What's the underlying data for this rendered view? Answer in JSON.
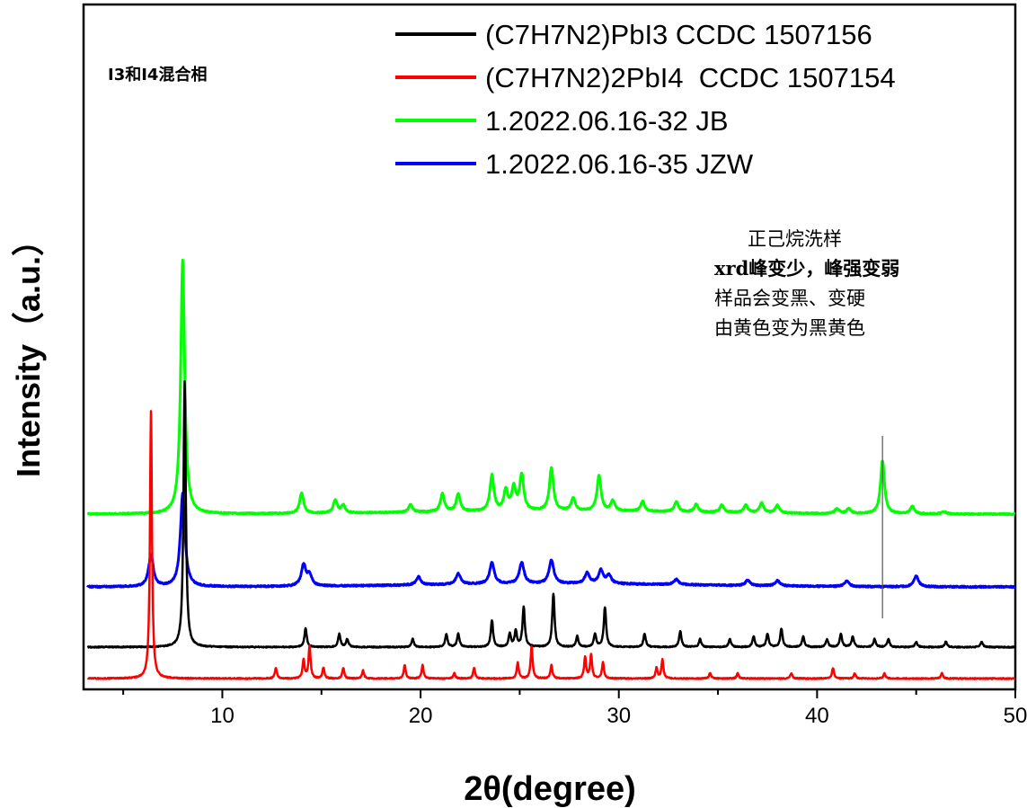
{
  "chart_data": {
    "type": "line",
    "xlabel": "2θ(degree)",
    "ylabel": "Intensity（a.u.）",
    "xlim": [
      3,
      50
    ],
    "x_ticks": [
      10,
      20,
      30,
      40,
      50
    ],
    "corner_label": "I3和I4混合相",
    "annotation_lines": [
      "正己烷洗样",
      "xrd峰变少，峰强变弱",
      "样品会变黑、变硬",
      "由黄色变为黑黄色"
    ],
    "marker_line_x": 43.3,
    "legend_position": "top-right",
    "series": [
      {
        "name": "(C7H7N2)PbI3 CCDC 1507156",
        "color": "#000000",
        "peaks": [
          [
            8.1,
            100
          ],
          [
            14.2,
            7
          ],
          [
            15.9,
            5
          ],
          [
            16.3,
            3
          ],
          [
            19.6,
            3
          ],
          [
            21.3,
            5
          ],
          [
            21.9,
            5
          ],
          [
            23.6,
            10
          ],
          [
            24.5,
            5
          ],
          [
            24.8,
            6
          ],
          [
            25.2,
            15
          ],
          [
            26.7,
            20
          ],
          [
            27.9,
            4
          ],
          [
            28.8,
            5
          ],
          [
            29.3,
            15
          ],
          [
            31.3,
            5
          ],
          [
            33.1,
            6
          ],
          [
            34.1,
            3
          ],
          [
            35.6,
            3
          ],
          [
            36.8,
            4
          ],
          [
            37.5,
            5
          ],
          [
            38.2,
            7
          ],
          [
            39.3,
            4
          ],
          [
            40.5,
            3
          ],
          [
            41.2,
            5
          ],
          [
            41.8,
            4
          ],
          [
            42.9,
            3
          ],
          [
            43.6,
            3
          ],
          [
            45.0,
            2
          ],
          [
            46.5,
            2
          ],
          [
            48.3,
            2
          ]
        ]
      },
      {
        "name": "(C7H7N2)2PbI4  CCDC 1507154",
        "color": "#ff0000",
        "peaks": [
          [
            6.4,
            100
          ],
          [
            12.7,
            4
          ],
          [
            14.1,
            7
          ],
          [
            14.4,
            12
          ],
          [
            15.1,
            4
          ],
          [
            16.1,
            4
          ],
          [
            17.1,
            3
          ],
          [
            19.2,
            5
          ],
          [
            20.1,
            5
          ],
          [
            21.7,
            2
          ],
          [
            22.7,
            4
          ],
          [
            24.9,
            6
          ],
          [
            25.6,
            12
          ],
          [
            26.6,
            5
          ],
          [
            28.3,
            8
          ],
          [
            28.6,
            9
          ],
          [
            29.2,
            6
          ],
          [
            31.9,
            4
          ],
          [
            32.2,
            7
          ],
          [
            34.6,
            2
          ],
          [
            36.0,
            2
          ],
          [
            38.7,
            2
          ],
          [
            40.8,
            4
          ],
          [
            41.9,
            2
          ],
          [
            43.4,
            2
          ],
          [
            46.3,
            2
          ]
        ]
      },
      {
        "name": "1.2022.06.16-32 JB",
        "color": "#00ff00",
        "peaks": [
          [
            8.0,
            100
          ],
          [
            14.0,
            8
          ],
          [
            15.7,
            5
          ],
          [
            16.1,
            3
          ],
          [
            19.5,
            3
          ],
          [
            21.1,
            7
          ],
          [
            21.9,
            7
          ],
          [
            23.6,
            14
          ],
          [
            24.3,
            8
          ],
          [
            24.7,
            9
          ],
          [
            25.1,
            14
          ],
          [
            26.6,
            17
          ],
          [
            27.7,
            5
          ],
          [
            29.0,
            14
          ],
          [
            29.7,
            4
          ],
          [
            31.2,
            4
          ],
          [
            32.9,
            4
          ],
          [
            33.9,
            3
          ],
          [
            35.2,
            3
          ],
          [
            36.4,
            3
          ],
          [
            37.2,
            4
          ],
          [
            38.0,
            3
          ],
          [
            41.0,
            2
          ],
          [
            41.6,
            2
          ],
          [
            43.3,
            21
          ],
          [
            44.8,
            3
          ],
          [
            46.4,
            1
          ]
        ]
      },
      {
        "name": "1.2022.06.16-35 JZW",
        "color": "#0000ff",
        "peaks": [
          [
            6.4,
            12
          ],
          [
            8.0,
            35
          ],
          [
            14.1,
            8
          ],
          [
            14.4,
            4
          ],
          [
            19.9,
            3
          ],
          [
            21.9,
            4
          ],
          [
            23.6,
            8
          ],
          [
            25.1,
            8
          ],
          [
            26.6,
            9
          ],
          [
            28.4,
            4
          ],
          [
            29.1,
            5
          ],
          [
            29.5,
            3
          ],
          [
            32.9,
            2
          ],
          [
            36.5,
            2
          ],
          [
            38.0,
            2
          ],
          [
            41.5,
            2
          ],
          [
            45.0,
            4
          ]
        ]
      }
    ]
  }
}
